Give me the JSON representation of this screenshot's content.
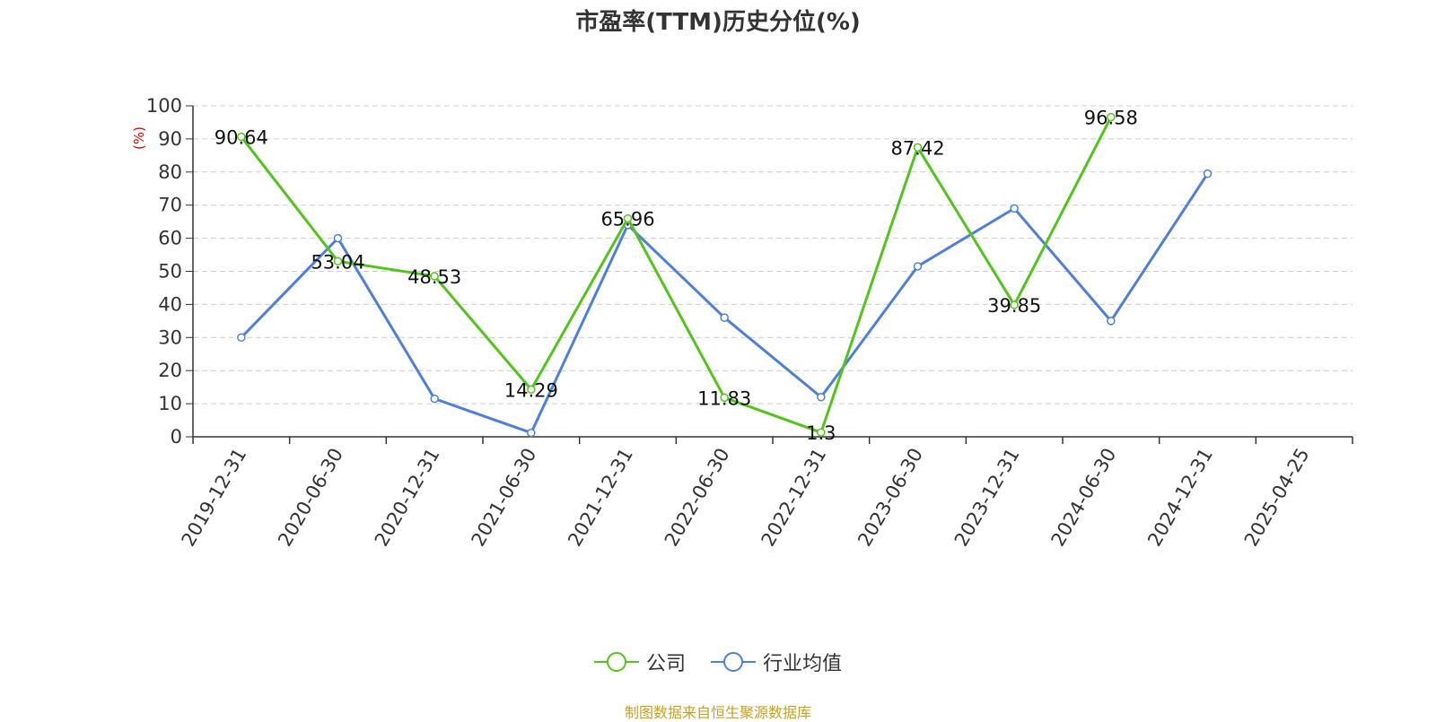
{
  "chart_data": {
    "type": "line",
    "title": "市盈率(TTM)历史分位(%)",
    "ylabel": "(%)",
    "xlabel": "",
    "ylim": [
      0,
      100
    ],
    "yticks": [
      0,
      10,
      20,
      30,
      40,
      50,
      60,
      70,
      80,
      90,
      100
    ],
    "categories": [
      "2019-12-31",
      "2020-06-30",
      "2020-12-31",
      "2021-06-30",
      "2021-12-31",
      "2022-06-30",
      "2022-12-31",
      "2023-06-30",
      "2023-12-31",
      "2024-06-30",
      "2024-12-31",
      "2025-04-25"
    ],
    "grid": true,
    "legend_position": "bottom",
    "series": [
      {
        "name": "公司",
        "color": "#52c41a",
        "values": [
          90.64,
          53.04,
          48.53,
          14.29,
          65.96,
          11.83,
          1.3,
          87.42,
          39.85,
          96.58,
          null,
          null
        ],
        "labels": [
          "90.64",
          "53.04",
          "48.53",
          "14.29",
          "65.96",
          "11.83",
          "1.3",
          "87.42",
          "39.85",
          "96.58",
          null,
          null
        ]
      },
      {
        "name": "行业均值",
        "color": "#4e7fdc",
        "values": [
          30,
          60,
          11.5,
          1.2,
          64,
          36,
          12,
          51.5,
          69,
          35,
          79.5,
          null
        ]
      }
    ]
  },
  "source_text": "制图数据来自恒生聚源数据库"
}
